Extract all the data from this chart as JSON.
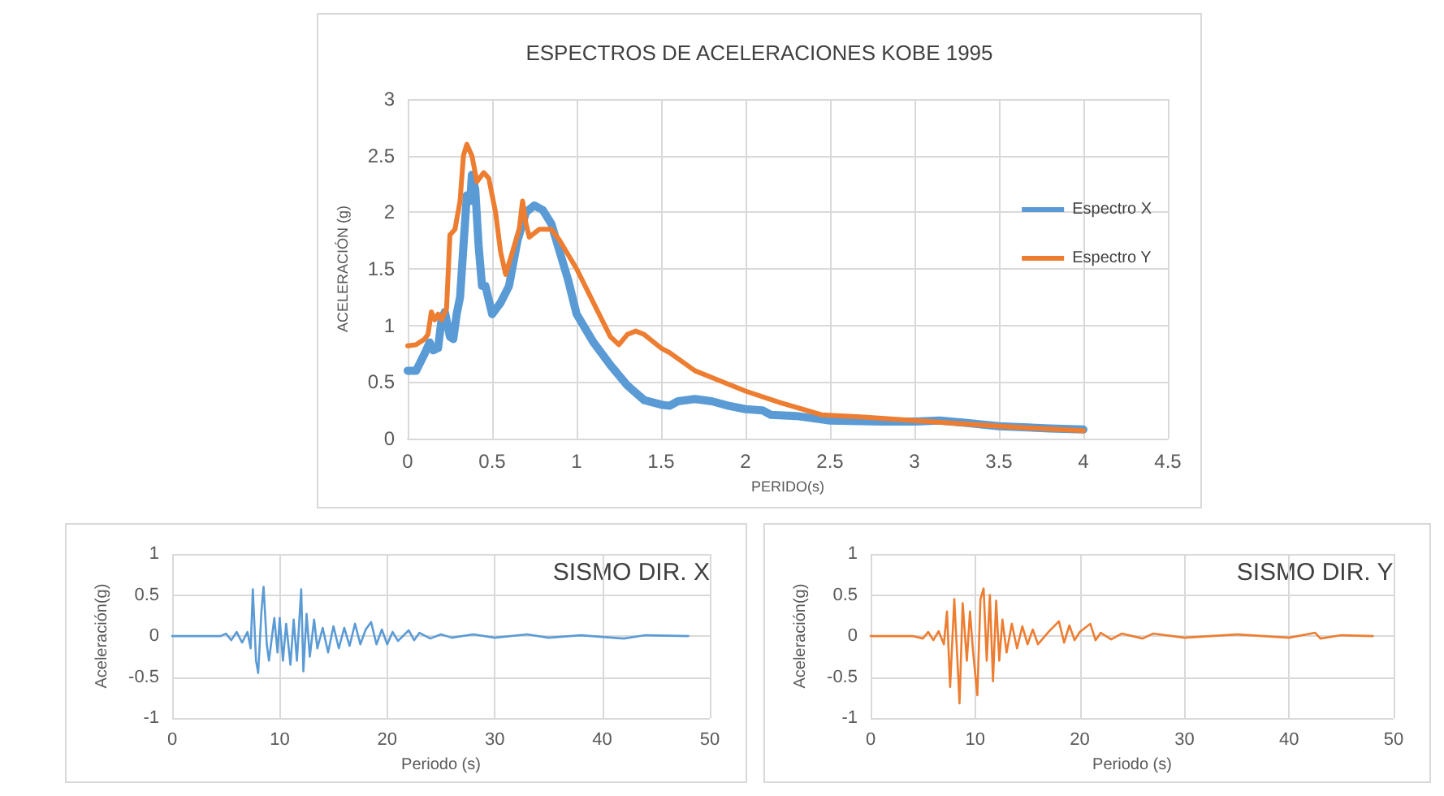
{
  "chart_data": [
    {
      "type": "line",
      "title": "ESPECTROS DE ACELERACIONES KOBE 1995",
      "xlabel": "PERIDO(s)",
      "ylabel": "ACELERACIÓN (g)",
      "xlim": [
        0,
        4.5
      ],
      "xticks": [
        0,
        0.5,
        1,
        1.5,
        2,
        2.5,
        3,
        3.5,
        4,
        4.5
      ],
      "ylim": [
        0,
        3
      ],
      "yticks": [
        0,
        0.5,
        1,
        1.5,
        2,
        2.5,
        3
      ],
      "grid": true,
      "legend": "right",
      "series": [
        {
          "name": "Espectro X",
          "color": "#5b9bd5",
          "x": [
            0,
            0.05,
            0.1,
            0.13,
            0.15,
            0.18,
            0.2,
            0.22,
            0.25,
            0.27,
            0.29,
            0.31,
            0.33,
            0.35,
            0.37,
            0.38,
            0.4,
            0.42,
            0.44,
            0.46,
            0.5,
            0.55,
            0.6,
            0.65,
            0.7,
            0.75,
            0.8,
            0.85,
            0.9,
            0.95,
            1.0,
            1.1,
            1.2,
            1.3,
            1.4,
            1.5,
            1.55,
            1.6,
            1.7,
            1.8,
            1.9,
            2.0,
            2.1,
            2.15,
            2.3,
            2.5,
            2.8,
            3.0,
            3.15,
            3.3,
            3.5,
            3.8,
            4.0
          ],
          "values": [
            0.6,
            0.6,
            0.75,
            0.85,
            0.78,
            0.8,
            1.05,
            1.12,
            0.9,
            0.88,
            1.1,
            1.25,
            1.7,
            2.15,
            2.1,
            2.33,
            2.2,
            1.7,
            1.35,
            1.35,
            1.1,
            1.2,
            1.35,
            1.75,
            2.0,
            2.06,
            2.02,
            1.9,
            1.65,
            1.4,
            1.1,
            0.85,
            0.65,
            0.47,
            0.34,
            0.3,
            0.29,
            0.33,
            0.35,
            0.33,
            0.29,
            0.26,
            0.25,
            0.21,
            0.2,
            0.16,
            0.15,
            0.15,
            0.16,
            0.14,
            0.11,
            0.09,
            0.08
          ]
        },
        {
          "name": "Espectro Y",
          "color": "#ed7d31",
          "x": [
            0,
            0.05,
            0.1,
            0.12,
            0.14,
            0.16,
            0.18,
            0.2,
            0.23,
            0.25,
            0.28,
            0.31,
            0.33,
            0.35,
            0.38,
            0.41,
            0.45,
            0.48,
            0.52,
            0.55,
            0.58,
            0.62,
            0.66,
            0.68,
            0.7,
            0.72,
            0.78,
            0.85,
            0.9,
            1.0,
            1.1,
            1.2,
            1.25,
            1.3,
            1.35,
            1.4,
            1.5,
            1.55,
            1.7,
            1.8,
            2.0,
            2.2,
            2.45,
            2.7,
            3.0,
            3.3,
            3.6,
            4.0
          ],
          "values": [
            0.82,
            0.83,
            0.88,
            0.92,
            1.12,
            1.05,
            1.1,
            1.05,
            1.15,
            1.8,
            1.85,
            2.1,
            2.5,
            2.6,
            2.5,
            2.27,
            2.35,
            2.3,
            2.0,
            1.65,
            1.45,
            1.65,
            1.85,
            2.1,
            1.9,
            1.78,
            1.85,
            1.85,
            1.75,
            1.5,
            1.2,
            0.9,
            0.83,
            0.92,
            0.95,
            0.92,
            0.8,
            0.76,
            0.6,
            0.54,
            0.42,
            0.32,
            0.21,
            0.19,
            0.16,
            0.13,
            0.1,
            0.07
          ]
        }
      ]
    },
    {
      "type": "line",
      "xlabel": "Periodo (s)",
      "ylabel": "Aceleración(g)",
      "annotations": [
        "SISMO DIR. X"
      ],
      "xlim": [
        0,
        50
      ],
      "xticks": [
        0,
        10,
        20,
        30,
        40,
        50
      ],
      "ylim": [
        -1,
        1
      ],
      "yticks": [
        -1,
        -0.5,
        0,
        0.5,
        1
      ],
      "grid": true,
      "series": [
        {
          "color": "#5b9bd5",
          "x": [
            0,
            4.5,
            5,
            5.5,
            6,
            6.5,
            7,
            7.3,
            7.5,
            7.8,
            8.0,
            8.3,
            8.5,
            8.8,
            9,
            9.5,
            9.8,
            10,
            10.3,
            10.6,
            11,
            11.3,
            11.6,
            12,
            12.2,
            12.5,
            12.8,
            13.2,
            13.5,
            14,
            14.5,
            15,
            15.5,
            16,
            16.5,
            17,
            17.5,
            18,
            18.5,
            19,
            19.5,
            20,
            20.5,
            21,
            22,
            22.5,
            23,
            24,
            25,
            26,
            28,
            30,
            33,
            35,
            38,
            42,
            44,
            48
          ],
          "values": [
            0,
            0,
            0.03,
            -0.05,
            0.05,
            -0.08,
            0.05,
            -0.15,
            0.57,
            -0.3,
            -0.45,
            0.3,
            0.6,
            -0.1,
            -0.3,
            0.22,
            -0.2,
            0.22,
            -0.3,
            0.15,
            -0.35,
            0.2,
            -0.3,
            0.57,
            -0.43,
            0.27,
            -0.25,
            0.2,
            -0.15,
            0.1,
            -0.2,
            0.12,
            -0.15,
            0.1,
            -0.12,
            0.15,
            -0.1,
            0.08,
            0.17,
            -0.1,
            0.08,
            -0.1,
            0.05,
            -0.06,
            0.07,
            -0.05,
            0.04,
            -0.03,
            0.02,
            -0.02,
            0.02,
            -0.02,
            0.02,
            -0.02,
            0.01,
            -0.03,
            0.01,
            0
          ]
        }
      ]
    },
    {
      "type": "line",
      "xlabel": "Periodo (s)",
      "ylabel": "Aceleración(g)",
      "annotations": [
        "SISMO DIR. Y"
      ],
      "xlim": [
        0,
        50
      ],
      "xticks": [
        0,
        10,
        20,
        30,
        40,
        50
      ],
      "ylim": [
        -1,
        1
      ],
      "yticks": [
        -1,
        -0.5,
        0,
        0.5,
        1
      ],
      "grid": true,
      "series": [
        {
          "color": "#ed7d31",
          "x": [
            0,
            4,
            5,
            5.5,
            6,
            6.5,
            7,
            7.3,
            7.6,
            8,
            8.3,
            8.5,
            8.8,
            9.2,
            9.5,
            9.8,
            10.2,
            10.5,
            10.8,
            11.1,
            11.4,
            11.7,
            12,
            12.3,
            12.6,
            13,
            13.5,
            14,
            14.5,
            15,
            15.5,
            16,
            17,
            18,
            18.5,
            19,
            19.5,
            20,
            21,
            21.5,
            22,
            23,
            24,
            26,
            27,
            30,
            35,
            40,
            42.5,
            43,
            45,
            48
          ],
          "values": [
            0,
            0,
            -0.03,
            0.05,
            -0.05,
            0.06,
            -0.1,
            0.3,
            -0.62,
            0.45,
            -0.3,
            -0.82,
            0.4,
            -0.3,
            0.3,
            -0.2,
            -0.72,
            0.45,
            0.58,
            -0.3,
            0.5,
            -0.55,
            0.43,
            -0.3,
            0.2,
            -0.2,
            0.15,
            -0.15,
            0.12,
            -0.1,
            0.08,
            -0.1,
            0.05,
            0.18,
            -0.08,
            0.13,
            -0.05,
            0.05,
            0.15,
            -0.05,
            0.04,
            -0.04,
            0.03,
            -0.03,
            0.03,
            -0.02,
            0.02,
            -0.02,
            0.04,
            -0.03,
            0.01,
            0
          ]
        }
      ]
    }
  ]
}
